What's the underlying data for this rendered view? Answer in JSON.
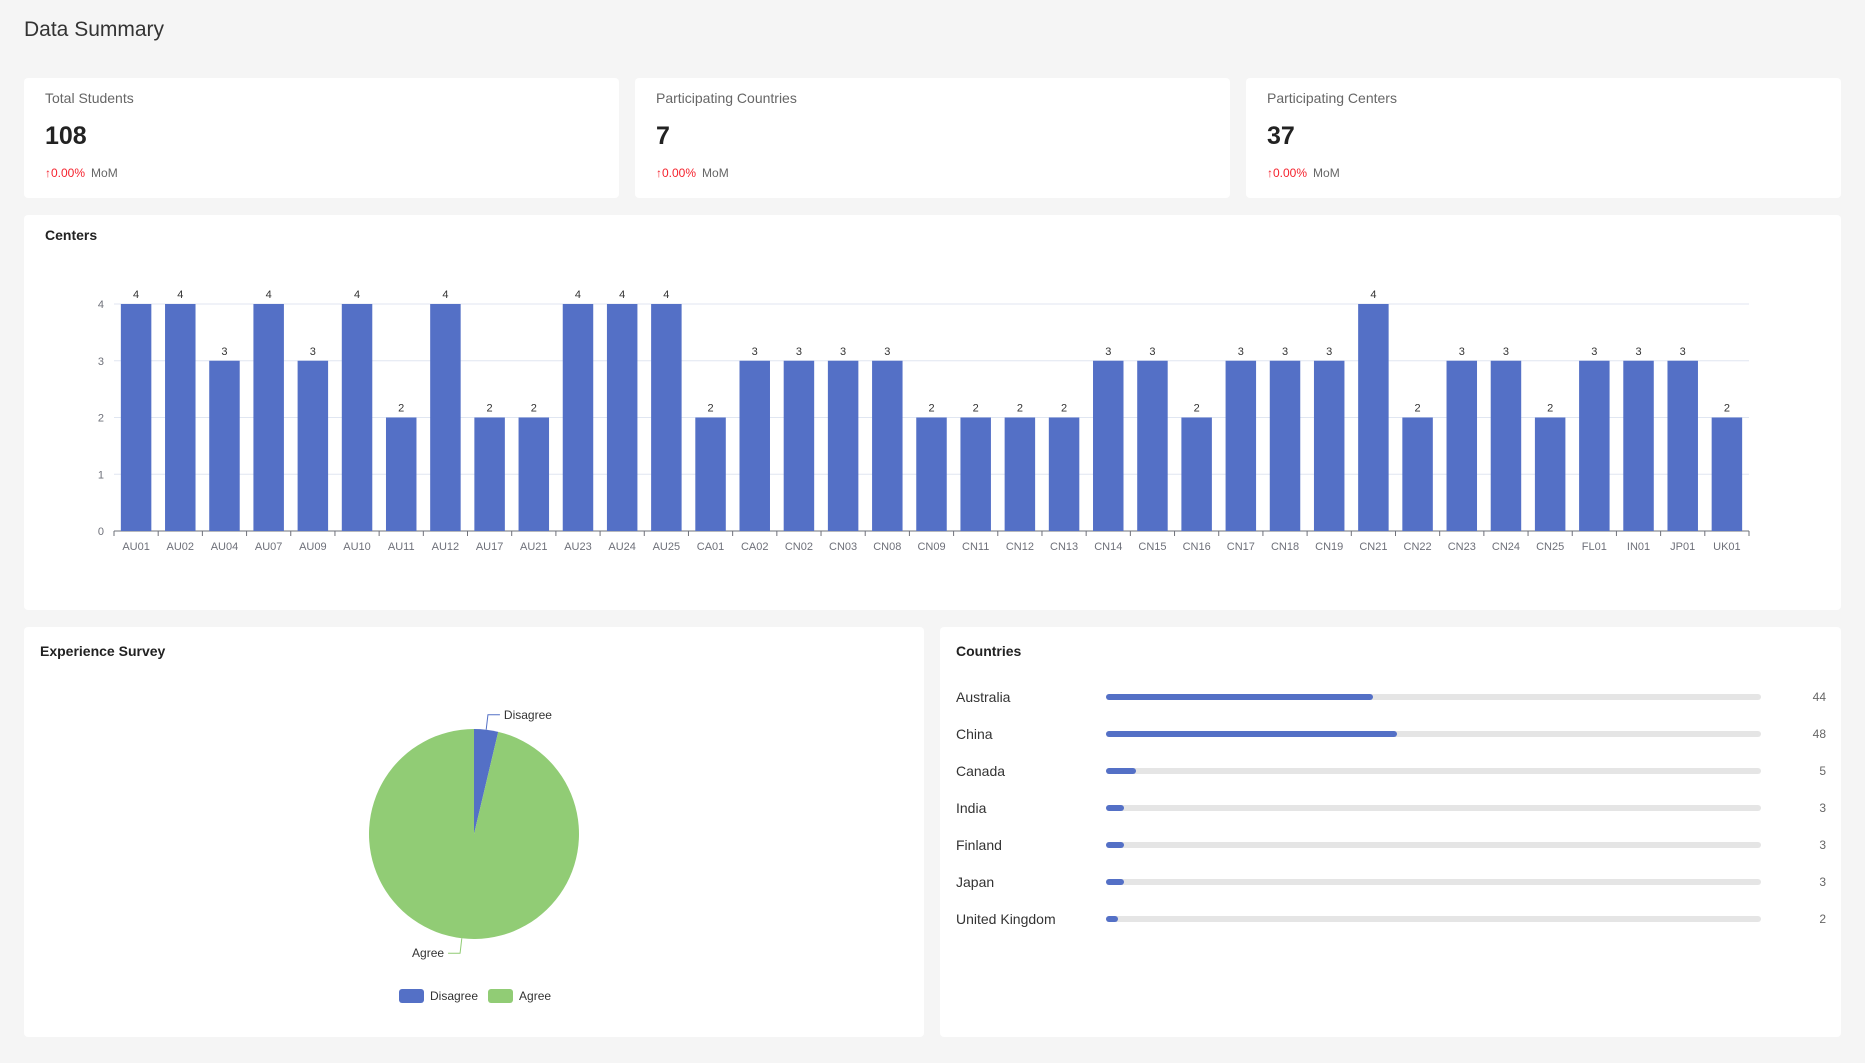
{
  "page": {
    "title": "Data Summary"
  },
  "stats": [
    {
      "label": "Total Students",
      "value": "108",
      "trend": "↑0.00%",
      "trend_label": "MoM"
    },
    {
      "label": "Participating Countries",
      "value": "7",
      "trend": "↑0.00%",
      "trend_label": "MoM"
    },
    {
      "label": "Participating Centers",
      "value": "37",
      "trend": "↑0.00%",
      "trend_label": "MoM"
    }
  ],
  "colors": {
    "primary": "#5470c6",
    "agree": "#91cc75",
    "trend_up": "#f5222d"
  },
  "centers": {
    "title": "Centers",
    "chart_data": {
      "type": "bar",
      "categories": [
        "AU01",
        "AU02",
        "AU04",
        "AU07",
        "AU09",
        "AU10",
        "AU11",
        "AU12",
        "AU17",
        "AU21",
        "AU23",
        "AU24",
        "AU25",
        "CA01",
        "CA02",
        "CN02",
        "CN03",
        "CN08",
        "CN09",
        "CN11",
        "CN12",
        "CN13",
        "CN14",
        "CN15",
        "CN16",
        "CN17",
        "CN18",
        "CN19",
        "CN21",
        "CN22",
        "CN23",
        "CN24",
        "CN25",
        "FL01",
        "IN01",
        "JP01",
        "UK01"
      ],
      "values": [
        4,
        4,
        3,
        4,
        3,
        4,
        2,
        4,
        2,
        2,
        4,
        4,
        4,
        2,
        3,
        3,
        3,
        3,
        2,
        2,
        2,
        2,
        3,
        3,
        2,
        3,
        3,
        3,
        4,
        2,
        3,
        3,
        2,
        3,
        3,
        3,
        2
      ],
      "ylim": [
        0,
        4
      ],
      "yticks": [
        0,
        1,
        2,
        3,
        4
      ],
      "grid": true,
      "data_labels": true
    }
  },
  "survey": {
    "title": "Experience Survey",
    "chart_data": {
      "type": "pie",
      "slices": [
        {
          "label": "Disagree",
          "value": 4
        },
        {
          "label": "Agree",
          "value": 104
        }
      ],
      "legend": "bottom"
    },
    "legend": [
      "Disagree",
      "Agree"
    ]
  },
  "countries": {
    "title": "Countries",
    "max": 108,
    "items": [
      {
        "name": "Australia",
        "count": 44
      },
      {
        "name": "China",
        "count": 48
      },
      {
        "name": "Canada",
        "count": 5
      },
      {
        "name": "India",
        "count": 3
      },
      {
        "name": "Finland",
        "count": 3
      },
      {
        "name": "Japan",
        "count": 3
      },
      {
        "name": "United Kingdom",
        "count": 2
      }
    ]
  }
}
